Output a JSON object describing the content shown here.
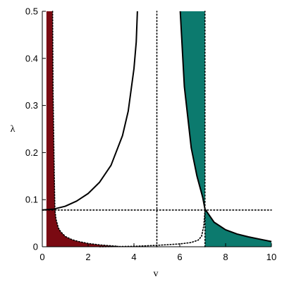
{
  "chart_data": {
    "type": "line",
    "title": "",
    "xlabel": "v",
    "ylabel": "λ",
    "xlim": [
      0,
      10
    ],
    "ylim": [
      0,
      0.5
    ],
    "xticks": [
      0,
      2,
      4,
      6,
      8,
      10
    ],
    "yticks": [
      0,
      0.1,
      0.2,
      0.3,
      0.4,
      0.5
    ],
    "xtick_labels": [
      "0",
      "2",
      "4",
      "6",
      "8",
      "10"
    ],
    "ytick_labels": [
      "0",
      "0.1",
      "0.2",
      "0.3",
      "0.4",
      "0.5"
    ],
    "grid": false,
    "legend": "none",
    "colors": {
      "red_region": "#7a0a12",
      "teal_region": "#0c7a6e",
      "curve": "#000000"
    },
    "curves": [
      {
        "style": "solid",
        "x": [
          0,
          0.5,
          1,
          1.5,
          2,
          2.5,
          3,
          3.5,
          3.75,
          4.0,
          4.1,
          4.15
        ],
        "y": [
          0.078,
          0.08,
          0.086,
          0.097,
          0.113,
          0.137,
          0.173,
          0.236,
          0.288,
          0.378,
          0.435,
          0.5
        ]
      },
      {
        "style": "solid",
        "x": [
          6.02,
          6.2,
          6.5,
          6.75,
          7.0,
          7.1,
          7.5,
          8,
          8.5,
          9,
          9.5,
          10
        ],
        "y": [
          0.5,
          0.34,
          0.21,
          0.15,
          0.105,
          0.08,
          0.052,
          0.036,
          0.027,
          0.021,
          0.016,
          0.011
        ]
      },
      {
        "style": "dotted",
        "x": [
          0.45,
          0.47,
          0.52,
          0.55,
          0.6,
          0.7,
          0.8,
          1.0,
          1.3,
          1.6,
          2.0,
          2.5,
          3.0,
          3.3
        ],
        "y": [
          0.5,
          0.33,
          0.16,
          0.078,
          0.058,
          0.04,
          0.032,
          0.022,
          0.015,
          0.011,
          0.007,
          0.004,
          0.002,
          0.001
        ]
      },
      {
        "style": "dotted",
        "x": [
          2.5,
          4,
          5,
          6,
          6.5,
          6.8,
          6.95,
          7.05,
          7.1
        ],
        "y": [
          0.0,
          0.001,
          0.003,
          0.006,
          0.009,
          0.014,
          0.022,
          0.045,
          0.078
        ]
      }
    ],
    "reference_lines": [
      {
        "orientation": "horizontal",
        "y": 0.078,
        "style": "dotted",
        "xrange": [
          0,
          10
        ]
      },
      {
        "orientation": "vertical",
        "x": 5.0,
        "style": "dotted",
        "yrange": [
          0,
          0.5
        ]
      },
      {
        "orientation": "vertical",
        "x": 7.1,
        "style": "dotted",
        "yrange": [
          0,
          0.5
        ]
      }
    ],
    "regions": [
      {
        "color": "#7a0a12",
        "upper_x": [
          0.18,
          0.45,
          0.47,
          0.52,
          0.55,
          0.6,
          0.7,
          0.8,
          1.0,
          1.3,
          1.6,
          2.0,
          2.5,
          3.0,
          3.3
        ],
        "upper_y": [
          0.5,
          0.5,
          0.33,
          0.16,
          0.078,
          0.058,
          0.04,
          0.032,
          0.022,
          0.015,
          0.011,
          0.007,
          0.004,
          0.002,
          0.001
        ]
      },
      {
        "color": "#0c7a6e",
        "upper_x": [
          6.02,
          7.1
        ],
        "upper_y": [
          0.5,
          0.5
        ],
        "lower_x": [
          6.02,
          6.2,
          6.5,
          6.75,
          7.0,
          7.1
        ],
        "lower_y": [
          0.5,
          0.34,
          0.21,
          0.15,
          0.105,
          0.08
        ]
      },
      {
        "color": "#0c7a6e",
        "upper_x": [
          7.1,
          7.5,
          8,
          8.5,
          9,
          9.5,
          10
        ],
        "upper_y": [
          0.08,
          0.052,
          0.036,
          0.027,
          0.021,
          0.016,
          0.011
        ]
      }
    ]
  }
}
